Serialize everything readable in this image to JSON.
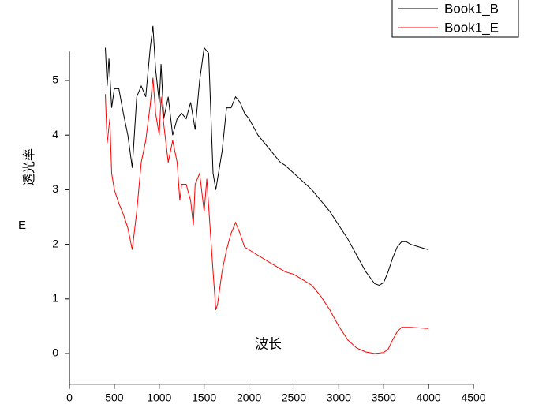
{
  "chart_data": {
    "type": "line",
    "x_label": "波长",
    "y_label": "E",
    "annotation": "透光率",
    "xlim": [
      0,
      4500
    ],
    "xticks": [
      0,
      500,
      1000,
      1500,
      2000,
      2500,
      3000,
      3500,
      4000,
      4500
    ],
    "ylim": [
      -0.56,
      5.53
    ],
    "yticks": [
      0,
      1,
      2,
      3,
      4,
      5
    ],
    "legend": "top-right",
    "series": [
      {
        "name": "Book1_B",
        "color": "#000000",
        "x": [
          400,
          420,
          440,
          470,
          500,
          550,
          600,
          650,
          700,
          750,
          800,
          850,
          900,
          930,
          960,
          1000,
          1020,
          1050,
          1100,
          1150,
          1200,
          1250,
          1300,
          1350,
          1400,
          1450,
          1500,
          1550,
          1600,
          1630,
          1650,
          1700,
          1750,
          1800,
          1850,
          1900,
          1950,
          2000,
          2100,
          2200,
          2300,
          2350,
          2400,
          2500,
          2600,
          2700,
          2800,
          2900,
          3000,
          3100,
          3200,
          3300,
          3400,
          3450,
          3500,
          3550,
          3600,
          3650,
          3700,
          3750,
          3800,
          3900,
          4000
        ],
        "values": [
          5.6,
          4.9,
          5.4,
          4.5,
          4.85,
          4.85,
          4.4,
          4.0,
          3.4,
          4.7,
          4.9,
          4.7,
          5.6,
          6.0,
          5.2,
          4.6,
          5.3,
          4.3,
          4.7,
          4.0,
          4.3,
          4.4,
          4.3,
          4.6,
          4.1,
          5.0,
          5.6,
          5.5,
          3.3,
          3.0,
          3.2,
          3.7,
          4.5,
          4.5,
          4.7,
          4.6,
          4.4,
          4.3,
          4.0,
          3.8,
          3.6,
          3.5,
          3.45,
          3.3,
          3.15,
          3.0,
          2.8,
          2.6,
          2.35,
          2.1,
          1.8,
          1.5,
          1.28,
          1.25,
          1.3,
          1.5,
          1.75,
          1.95,
          2.05,
          2.05,
          2.0,
          1.95,
          1.9
        ]
      },
      {
        "name": "Book1_E",
        "color": "#ff0000",
        "x": [
          400,
          420,
          450,
          470,
          500,
          550,
          600,
          650,
          700,
          750,
          800,
          850,
          900,
          930,
          960,
          1000,
          1020,
          1050,
          1100,
          1150,
          1200,
          1230,
          1250,
          1300,
          1350,
          1380,
          1400,
          1450,
          1500,
          1530,
          1600,
          1630,
          1650,
          1700,
          1750,
          1800,
          1850,
          1900,
          1950,
          2000,
          2100,
          2200,
          2300,
          2400,
          2500,
          2600,
          2700,
          2800,
          2900,
          3000,
          3100,
          3200,
          3300,
          3400,
          3500,
          3550,
          3600,
          3650,
          3700,
          3800,
          3900,
          4000
        ],
        "values": [
          4.75,
          3.85,
          4.3,
          3.3,
          3.0,
          2.75,
          2.55,
          2.3,
          1.9,
          2.6,
          3.5,
          3.9,
          4.55,
          5.05,
          4.4,
          4.0,
          4.7,
          4.2,
          3.5,
          3.9,
          3.5,
          2.8,
          3.1,
          3.1,
          2.8,
          2.35,
          3.1,
          3.3,
          2.6,
          3.2,
          1.5,
          0.8,
          0.9,
          1.5,
          1.9,
          2.2,
          2.4,
          2.2,
          1.95,
          1.9,
          1.8,
          1.7,
          1.6,
          1.5,
          1.45,
          1.35,
          1.25,
          1.05,
          0.8,
          0.5,
          0.25,
          0.1,
          0.03,
          0.0,
          0.02,
          0.08,
          0.25,
          0.4,
          0.48,
          0.48,
          0.47,
          0.46
        ]
      }
    ]
  }
}
